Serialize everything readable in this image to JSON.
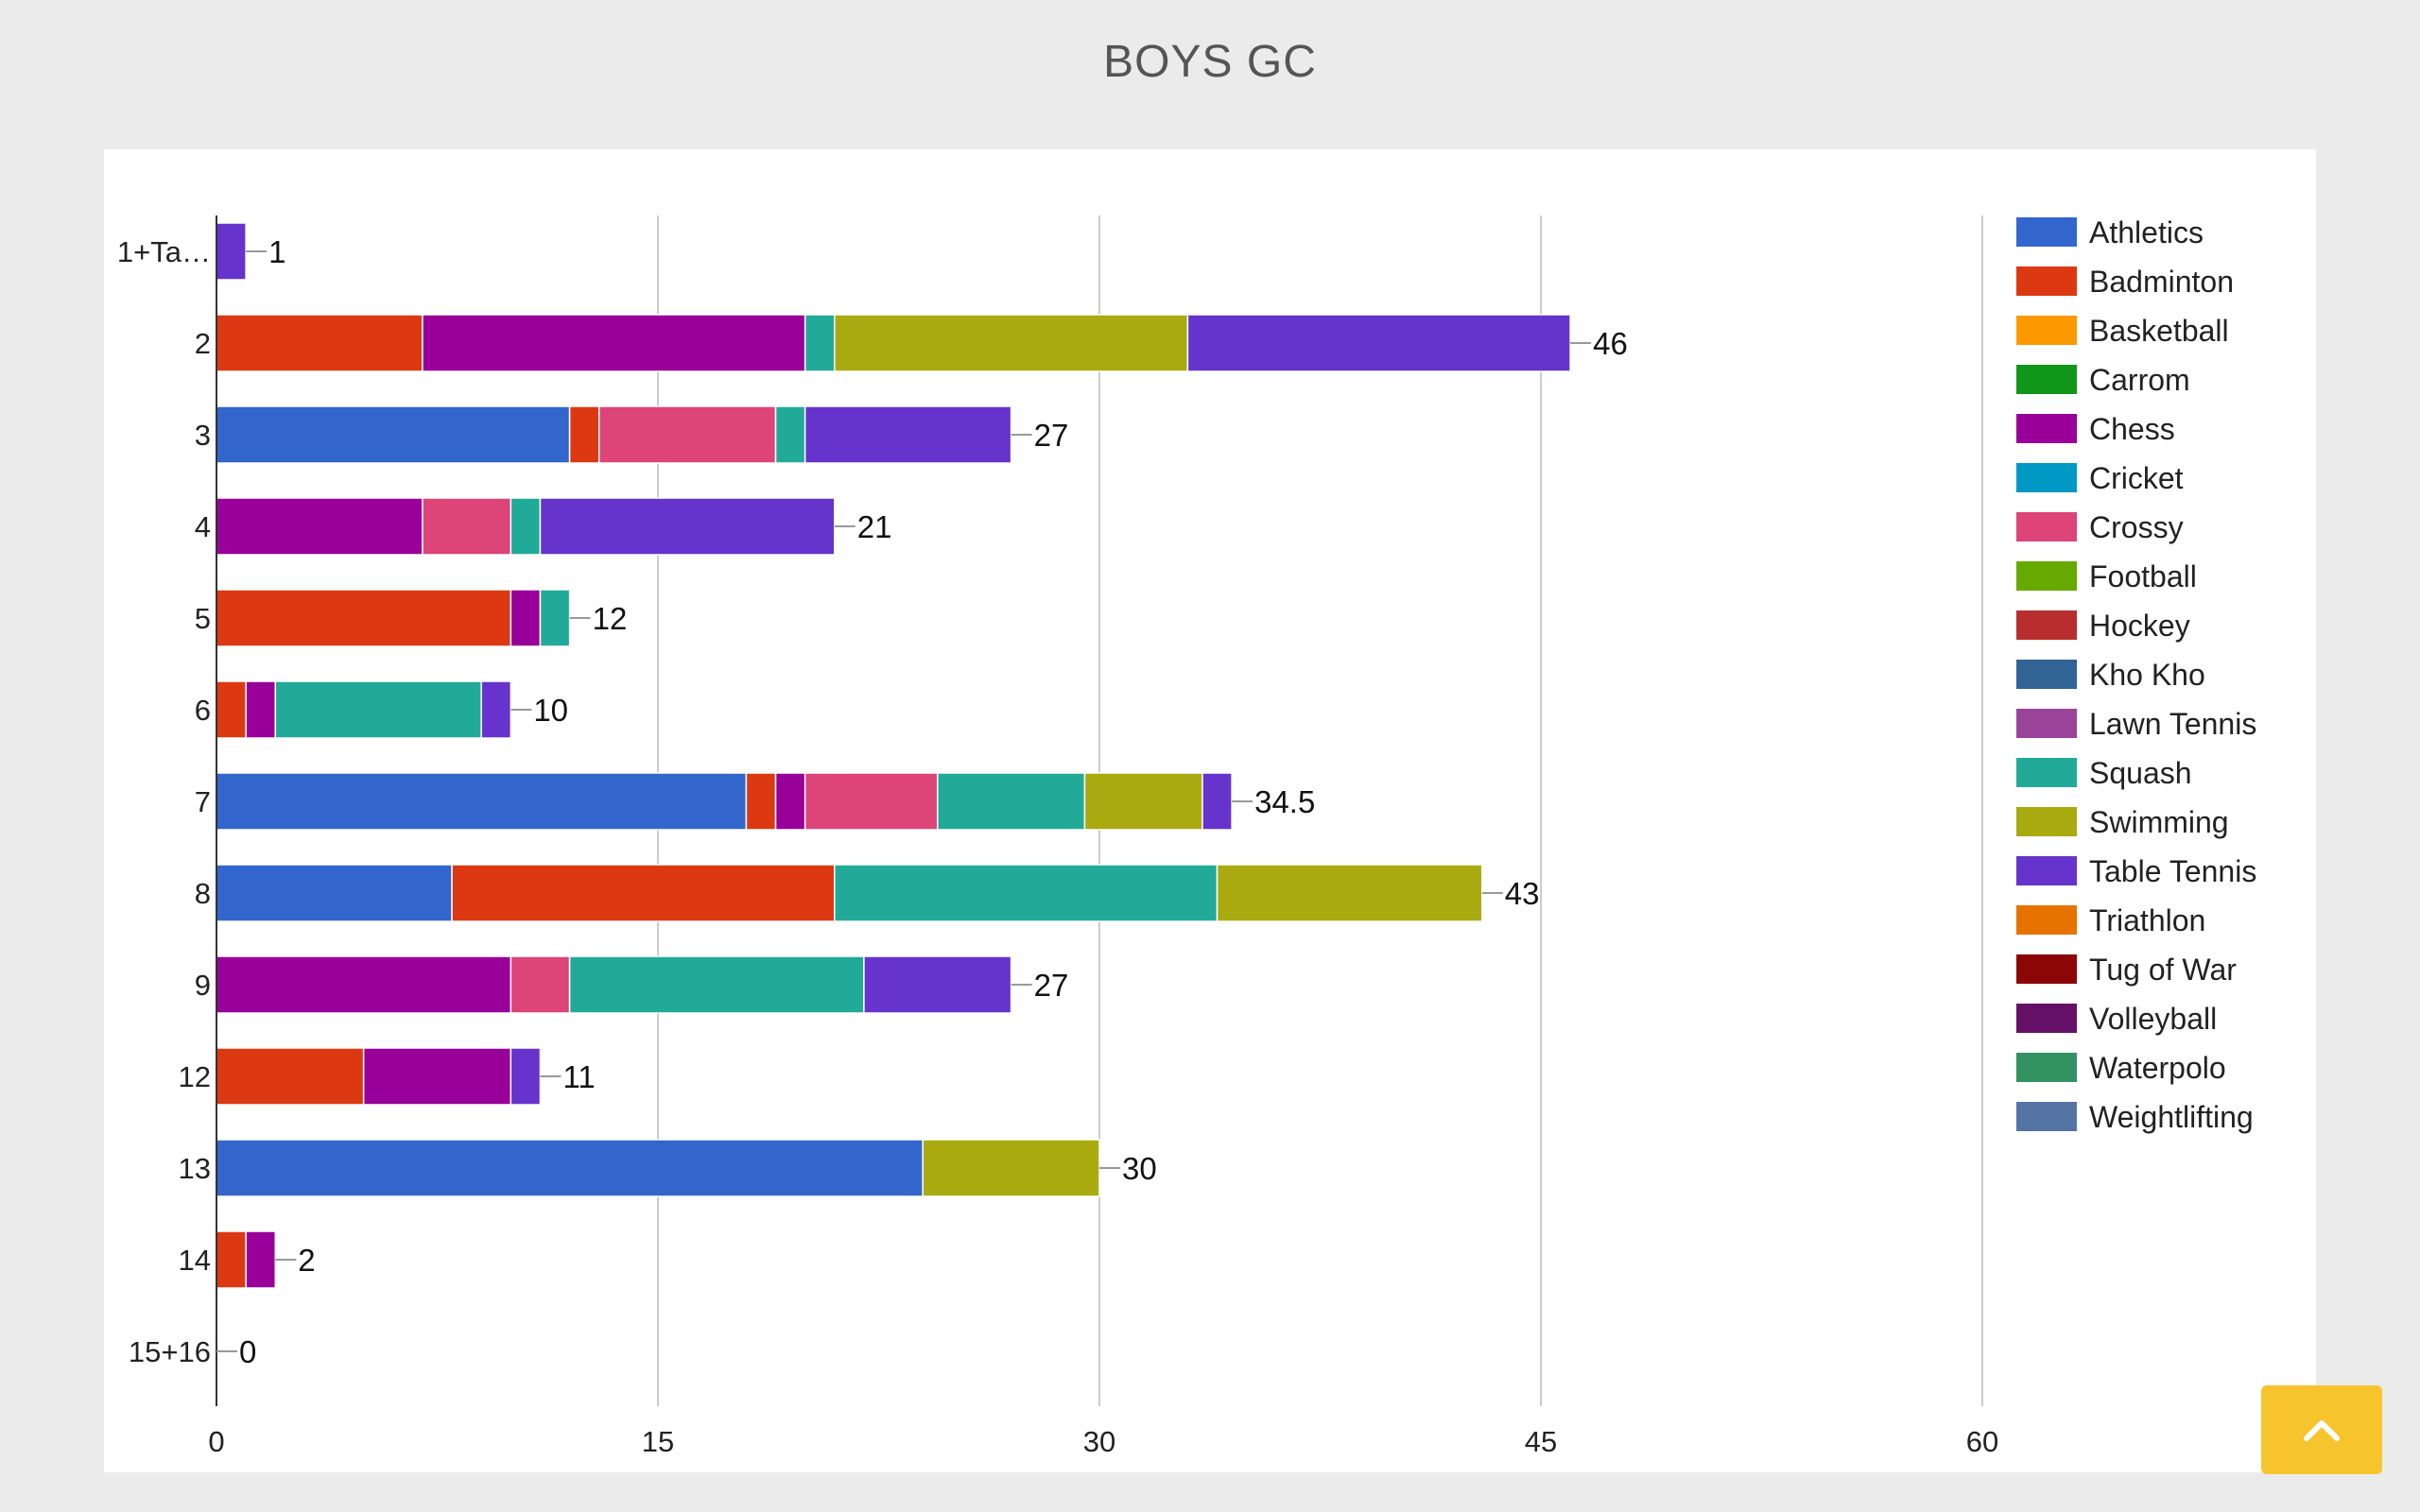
{
  "page": {
    "title": "BOYS GC"
  },
  "chart_data": {
    "type": "bar",
    "orientation": "horizontal",
    "stacked": true,
    "title": "",
    "xlabel": "",
    "ylabel": "",
    "xlim": [
      0,
      60
    ],
    "xticks": [
      "0",
      "15",
      "30",
      "45",
      "60"
    ],
    "grid": true,
    "legend_position": "right",
    "categories": [
      "1+Ta…",
      "2",
      "3",
      "4",
      "5",
      "6",
      "7",
      "8",
      "9",
      "12",
      "13",
      "14",
      "15+16"
    ],
    "totals": [
      "1",
      "46",
      "27",
      "21",
      "12",
      "10",
      "34.5",
      "43",
      "27",
      "11",
      "30",
      "2",
      "0"
    ],
    "series": [
      {
        "name": "Athletics",
        "color": "#3366cc",
        "values": [
          0,
          0,
          12,
          0,
          0,
          0,
          18,
          8,
          0,
          0,
          24,
          0,
          0
        ]
      },
      {
        "name": "Badminton",
        "color": "#dc3912",
        "values": [
          0,
          7,
          1,
          0,
          10,
          1,
          1,
          13,
          0,
          5,
          0,
          1,
          0
        ]
      },
      {
        "name": "Basketball",
        "color": "#ff9900",
        "values": [
          0,
          0,
          0,
          0,
          0,
          0,
          0,
          0,
          0,
          0,
          0,
          0,
          0
        ]
      },
      {
        "name": "Carrom",
        "color": "#109618",
        "values": [
          0,
          0,
          0,
          0,
          0,
          0,
          0,
          0,
          0,
          0,
          0,
          0,
          0
        ]
      },
      {
        "name": "Chess",
        "color": "#990099",
        "values": [
          0,
          13,
          0,
          7,
          1,
          1,
          1,
          0,
          10,
          5,
          0,
          1,
          0
        ]
      },
      {
        "name": "Cricket",
        "color": "#0099c6",
        "values": [
          0,
          0,
          0,
          0,
          0,
          0,
          0,
          0,
          0,
          0,
          0,
          0,
          0
        ]
      },
      {
        "name": "Crossy",
        "color": "#dd4477",
        "values": [
          0,
          0,
          6,
          3,
          0,
          0,
          4.5,
          0,
          2,
          0,
          0,
          0,
          0
        ]
      },
      {
        "name": "Football",
        "color": "#66aa00",
        "values": [
          0,
          0,
          0,
          0,
          0,
          0,
          0,
          0,
          0,
          0,
          0,
          0,
          0
        ]
      },
      {
        "name": "Hockey",
        "color": "#b82e2e",
        "values": [
          0,
          0,
          0,
          0,
          0,
          0,
          0,
          0,
          0,
          0,
          0,
          0,
          0
        ]
      },
      {
        "name": "Kho Kho",
        "color": "#316395",
        "values": [
          0,
          0,
          0,
          0,
          0,
          0,
          0,
          0,
          0,
          0,
          0,
          0,
          0
        ]
      },
      {
        "name": "Lawn Tennis",
        "color": "#994499",
        "values": [
          0,
          0,
          0,
          0,
          0,
          0,
          0,
          0,
          0,
          0,
          0,
          0,
          0
        ]
      },
      {
        "name": "Squash",
        "color": "#22aa99",
        "values": [
          0,
          1,
          1,
          1,
          1,
          7,
          5,
          13,
          10,
          0,
          0,
          0,
          0
        ]
      },
      {
        "name": "Swimming",
        "color": "#aaaa11",
        "values": [
          0,
          12,
          0,
          0,
          0,
          0,
          4,
          9,
          0,
          0,
          6,
          0,
          0
        ]
      },
      {
        "name": "Table Tennis",
        "color": "#6633cc",
        "values": [
          1,
          13,
          7,
          10,
          0,
          1,
          1,
          0,
          5,
          1,
          0,
          0,
          0
        ]
      },
      {
        "name": "Triathlon",
        "color": "#e67300",
        "values": [
          0,
          0,
          0,
          0,
          0,
          0,
          0,
          0,
          0,
          0,
          0,
          0,
          0
        ]
      },
      {
        "name": "Tug of War",
        "color": "#8b0707",
        "values": [
          0,
          0,
          0,
          0,
          0,
          0,
          0,
          0,
          0,
          0,
          0,
          0,
          0
        ]
      },
      {
        "name": "Volleyball",
        "color": "#651067",
        "values": [
          0,
          0,
          0,
          0,
          0,
          0,
          0,
          0,
          0,
          0,
          0,
          0,
          0
        ]
      },
      {
        "name": "Waterpolo",
        "color": "#329262",
        "values": [
          0,
          0,
          0,
          0,
          0,
          0,
          0,
          0,
          0,
          0,
          0,
          0,
          0
        ]
      },
      {
        "name": "Weightlifting",
        "color": "#5574a6",
        "values": [
          0,
          0,
          0,
          0,
          0,
          0,
          0,
          0,
          0,
          0,
          0,
          0,
          0
        ]
      }
    ]
  },
  "scroll_top": {
    "icon": "chevron-up-icon"
  }
}
